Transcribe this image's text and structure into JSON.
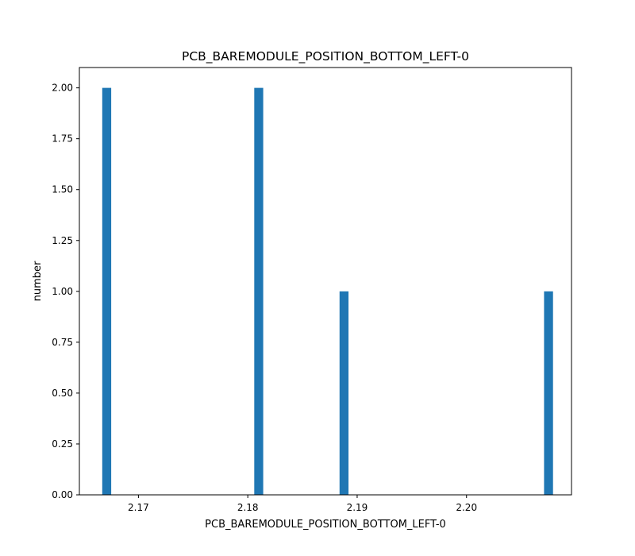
{
  "chart_data": {
    "type": "bar",
    "title": "PCB_BAREMODULE_POSITION_BOTTOM_LEFT-0",
    "xlabel": "PCB_BAREMODULE_POSITION_BOTTOM_LEFT-0",
    "ylabel": "number",
    "xlim": [
      2.1646,
      2.2096
    ],
    "ylim": [
      0,
      2.1
    ],
    "bin_width": 0.00082,
    "bars": [
      {
        "x": 2.1671,
        "value": 2
      },
      {
        "x": 2.181,
        "value": 2
      },
      {
        "x": 2.1888,
        "value": 1
      },
      {
        "x": 2.2075,
        "value": 1
      }
    ],
    "x_ticks": [
      {
        "value": 2.17,
        "label": "2.17"
      },
      {
        "value": 2.18,
        "label": "2.18"
      },
      {
        "value": 2.19,
        "label": "2.19"
      },
      {
        "value": 2.2,
        "label": "2.20"
      }
    ],
    "y_ticks": [
      {
        "value": 0.0,
        "label": "0.00"
      },
      {
        "value": 0.25,
        "label": "0.25"
      },
      {
        "value": 0.5,
        "label": "0.50"
      },
      {
        "value": 0.75,
        "label": "0.75"
      },
      {
        "value": 1.0,
        "label": "1.00"
      },
      {
        "value": 1.25,
        "label": "1.25"
      },
      {
        "value": 1.5,
        "label": "1.50"
      },
      {
        "value": 1.75,
        "label": "1.75"
      },
      {
        "value": 2.0,
        "label": "2.00"
      }
    ],
    "grid": false,
    "colors": {
      "bar": "#1f77b4",
      "axes": "#000000",
      "background": "#ffffff"
    }
  }
}
